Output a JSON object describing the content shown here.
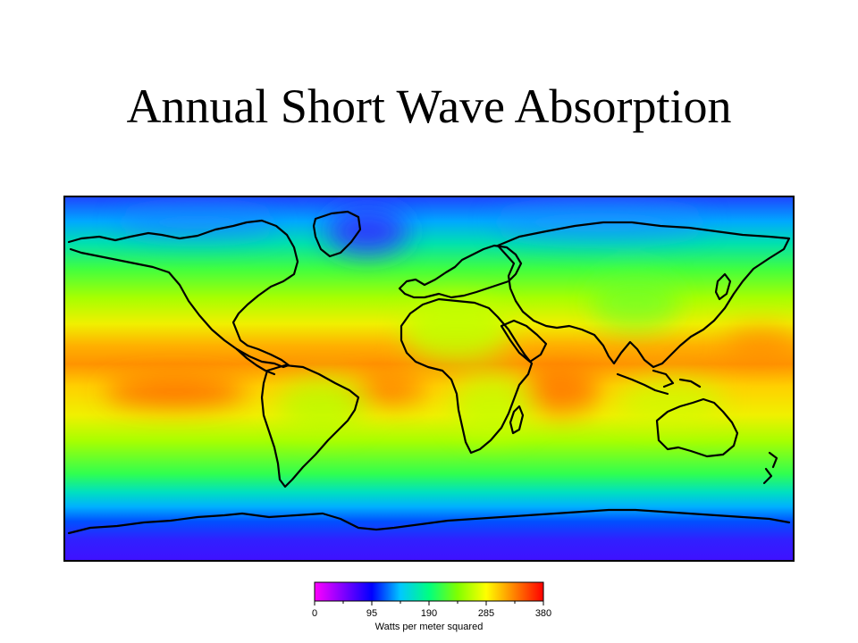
{
  "title": "Annual Short Wave Absorption",
  "map": {
    "quantity": "annual absorbed short wave radiation",
    "projection": "equirectangular world map",
    "coastlines": "black outlines",
    "field_description": "maximum (orange/red) over the tropical oceans, decreasing toward the poles (blue/violet over the Arctic and Antarctica)"
  },
  "colorbar": {
    "min": 0,
    "max": 380,
    "ticks": [
      "0",
      "95",
      "190",
      "285",
      "380"
    ],
    "units": "Watts per meter squared",
    "colors": [
      "#ff00ff",
      "#8000ff",
      "#0000ff",
      "#00c8ff",
      "#00ff80",
      "#80ff00",
      "#ffff00",
      "#ff8000",
      "#ff0000"
    ]
  }
}
